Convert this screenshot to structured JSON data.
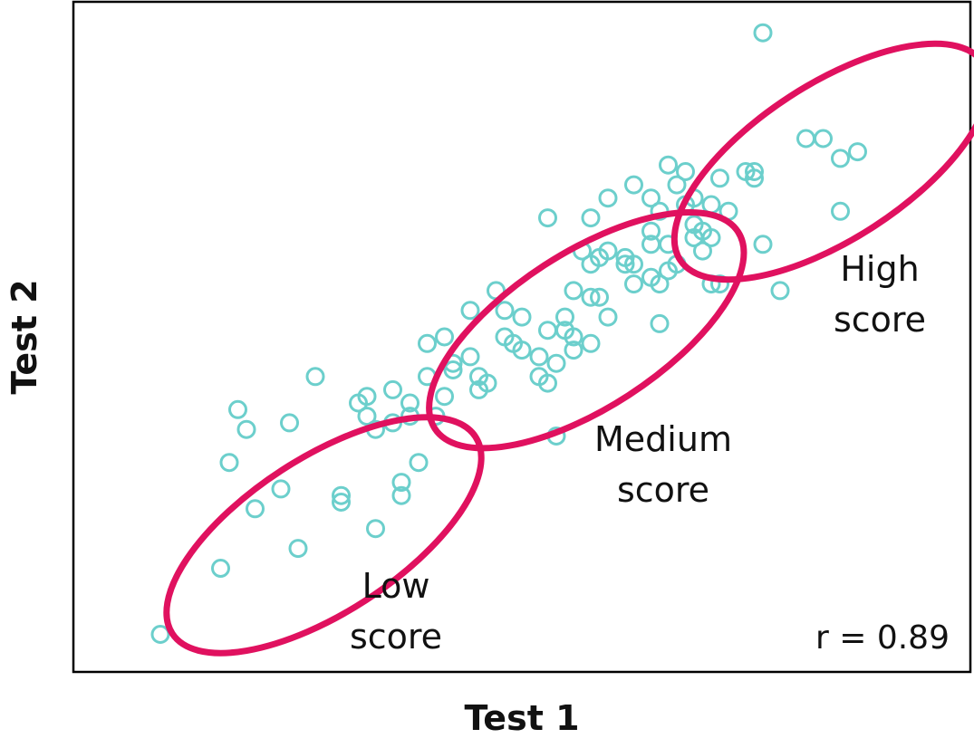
{
  "chart_data": {
    "type": "scatter",
    "xlabel": "Test 1",
    "ylabel": "Test 2",
    "xlim": [
      0,
      100
    ],
    "ylim": [
      0,
      100
    ],
    "grid": false,
    "legend": "none",
    "correlation_label": "r = 0.89",
    "point_color": "#6ccfcc",
    "ellipse_color": "#e0115f",
    "groups": [
      {
        "label_lines": [
          "Low",
          "score"
        ],
        "ellipse": {
          "cx": 27,
          "cy": 20,
          "rx": 21,
          "ry": 9,
          "angle": 33
        }
      },
      {
        "label_lines": [
          "Medium",
          "score"
        ],
        "ellipse": {
          "cx": 57.5,
          "cy": 51,
          "rx": 21,
          "ry": 9,
          "angle": 33
        }
      },
      {
        "label_lines": [
          "High",
          "score"
        ],
        "ellipse": {
          "cx": 86,
          "cy": 76.5,
          "rx": 21,
          "ry": 9,
          "angle": 33
        }
      }
    ],
    "points": [
      {
        "x": 8,
        "y": 5
      },
      {
        "x": 15,
        "y": 15
      },
      {
        "x": 24,
        "y": 18
      },
      {
        "x": 19,
        "y": 24
      },
      {
        "x": 22,
        "y": 27
      },
      {
        "x": 16,
        "y": 31
      },
      {
        "x": 18,
        "y": 36
      },
      {
        "x": 17,
        "y": 39
      },
      {
        "x": 23,
        "y": 37
      },
      {
        "x": 29,
        "y": 26
      },
      {
        "x": 29,
        "y": 25
      },
      {
        "x": 33,
        "y": 21
      },
      {
        "x": 36,
        "y": 26
      },
      {
        "x": 36,
        "y": 28
      },
      {
        "x": 26,
        "y": 44
      },
      {
        "x": 31,
        "y": 40
      },
      {
        "x": 33,
        "y": 36
      },
      {
        "x": 32,
        "y": 38
      },
      {
        "x": 32,
        "y": 41
      },
      {
        "x": 35,
        "y": 42
      },
      {
        "x": 35,
        "y": 37
      },
      {
        "x": 37,
        "y": 38
      },
      {
        "x": 38,
        "y": 31
      },
      {
        "x": 37,
        "y": 40
      },
      {
        "x": 39,
        "y": 44
      },
      {
        "x": 39,
        "y": 49
      },
      {
        "x": 41,
        "y": 50
      },
      {
        "x": 40,
        "y": 38
      },
      {
        "x": 41,
        "y": 41
      },
      {
        "x": 42,
        "y": 45
      },
      {
        "x": 42,
        "y": 46
      },
      {
        "x": 44,
        "y": 47
      },
      {
        "x": 45,
        "y": 42
      },
      {
        "x": 46,
        "y": 43
      },
      {
        "x": 45,
        "y": 44
      },
      {
        "x": 44,
        "y": 54
      },
      {
        "x": 47,
        "y": 57
      },
      {
        "x": 48,
        "y": 54
      },
      {
        "x": 48,
        "y": 50
      },
      {
        "x": 49,
        "y": 49
      },
      {
        "x": 50,
        "y": 48
      },
      {
        "x": 50,
        "y": 53
      },
      {
        "x": 52,
        "y": 44
      },
      {
        "x": 53,
        "y": 43
      },
      {
        "x": 52,
        "y": 47
      },
      {
        "x": 53,
        "y": 51
      },
      {
        "x": 54,
        "y": 46
      },
      {
        "x": 55,
        "y": 51
      },
      {
        "x": 55,
        "y": 53
      },
      {
        "x": 56,
        "y": 48
      },
      {
        "x": 56,
        "y": 50
      },
      {
        "x": 56,
        "y": 57
      },
      {
        "x": 57,
        "y": 63
      },
      {
        "x": 58,
        "y": 61
      },
      {
        "x": 58,
        "y": 56
      },
      {
        "x": 58,
        "y": 49
      },
      {
        "x": 59,
        "y": 62
      },
      {
        "x": 60,
        "y": 63
      },
      {
        "x": 59,
        "y": 56
      },
      {
        "x": 60,
        "y": 53
      },
      {
        "x": 62,
        "y": 62
      },
      {
        "x": 62,
        "y": 61
      },
      {
        "x": 63,
        "y": 58
      },
      {
        "x": 63,
        "y": 61
      },
      {
        "x": 65,
        "y": 64
      },
      {
        "x": 65,
        "y": 59
      },
      {
        "x": 66,
        "y": 58
      },
      {
        "x": 67,
        "y": 60
      },
      {
        "x": 65,
        "y": 66
      },
      {
        "x": 54,
        "y": 35
      },
      {
        "x": 53,
        "y": 68
      },
      {
        "x": 58,
        "y": 68
      },
      {
        "x": 63,
        "y": 73
      },
      {
        "x": 65,
        "y": 71
      },
      {
        "x": 66,
        "y": 69
      },
      {
        "x": 67,
        "y": 64
      },
      {
        "x": 68,
        "y": 61
      },
      {
        "x": 66,
        "y": 52
      },
      {
        "x": 69,
        "y": 75
      },
      {
        "x": 69,
        "y": 70
      },
      {
        "x": 70,
        "y": 67
      },
      {
        "x": 70,
        "y": 65
      },
      {
        "x": 71,
        "y": 63
      },
      {
        "x": 71,
        "y": 66
      },
      {
        "x": 72,
        "y": 70
      },
      {
        "x": 72,
        "y": 58
      },
      {
        "x": 73,
        "y": 58
      },
      {
        "x": 72,
        "y": 65
      },
      {
        "x": 73,
        "y": 74
      },
      {
        "x": 74,
        "y": 69
      },
      {
        "x": 76,
        "y": 75
      },
      {
        "x": 77,
        "y": 75
      },
      {
        "x": 77,
        "y": 74
      },
      {
        "x": 78,
        "y": 64
      },
      {
        "x": 80,
        "y": 57
      },
      {
        "x": 78,
        "y": 96
      },
      {
        "x": 83,
        "y": 80
      },
      {
        "x": 85,
        "y": 80
      },
      {
        "x": 87,
        "y": 77
      },
      {
        "x": 89,
        "y": 78
      },
      {
        "x": 87,
        "y": 69
      },
      {
        "x": 67,
        "y": 76
      },
      {
        "x": 60,
        "y": 71
      },
      {
        "x": 68,
        "y": 73
      },
      {
        "x": 70,
        "y": 71
      }
    ]
  }
}
